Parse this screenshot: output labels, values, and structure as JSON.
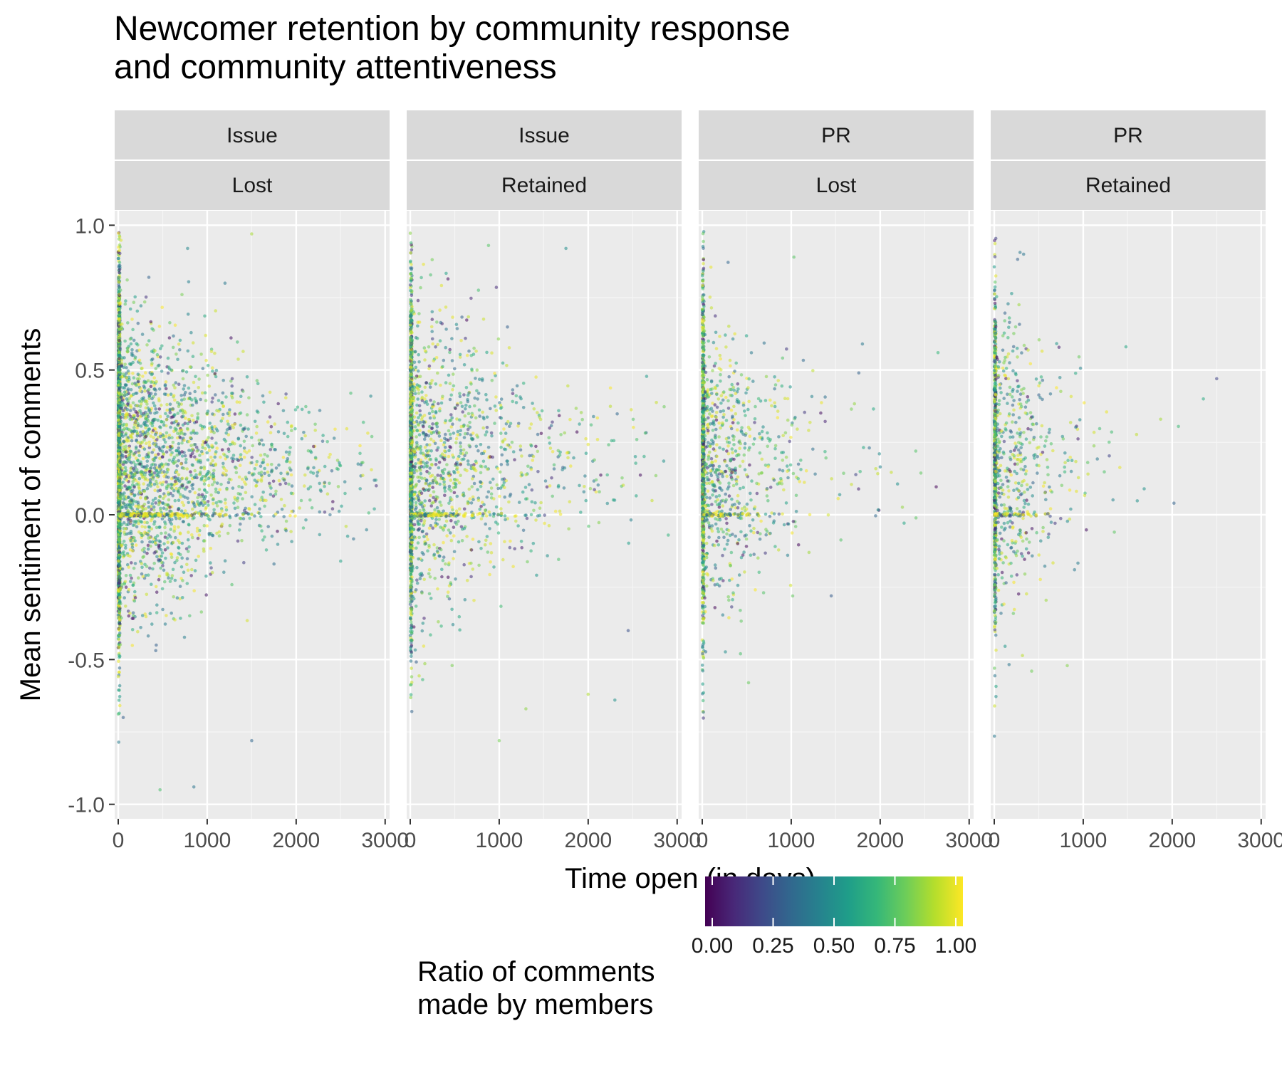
{
  "chart_data": {
    "type": "scatter",
    "title_lines": [
      "Newcomer retention by community response",
      "and community attentiveness"
    ],
    "xlabel": "Time open (in days)",
    "ylabel": "Mean sentiment of comments",
    "xlim": [
      -40,
      3050
    ],
    "ylim": [
      -1.05,
      1.05
    ],
    "x_ticks": [
      0,
      1000,
      2000,
      3000
    ],
    "x_tick_labels": [
      "0",
      "1000",
      "2000",
      "3000"
    ],
    "y_ticks": [
      -1.0,
      -0.5,
      0.0,
      0.5,
      1.0
    ],
    "y_tick_labels": [
      "-1.0",
      "-0.5",
      "0.0",
      "0.5",
      "1.0"
    ],
    "grid": true,
    "facets": [
      {
        "row1": "Issue",
        "row2": "Lost",
        "density": 3.0,
        "spread_days": 750,
        "max_days": 2900,
        "highlights": [
          [
            1500,
            0.97
          ],
          [
            780,
            0.92
          ],
          [
            1200,
            0.8
          ],
          [
            2500,
            -0.16
          ],
          [
            2900,
            0.1
          ],
          [
            850,
            -0.94
          ],
          [
            470,
            -0.95
          ],
          [
            1500,
            -0.78
          ]
        ]
      },
      {
        "row1": "Issue",
        "row2": "Retained",
        "density": 1.6,
        "spread_days": 650,
        "max_days": 2900,
        "highlights": [
          [
            1750,
            0.92
          ],
          [
            2900,
            -0.07
          ],
          [
            2450,
            -0.4
          ],
          [
            1300,
            -0.67
          ],
          [
            2300,
            -0.64
          ],
          [
            2000,
            -0.62
          ],
          [
            1000,
            -0.78
          ],
          [
            880,
            0.93
          ]
        ]
      },
      {
        "row1": "PR",
        "row2": "Lost",
        "density": 1.0,
        "spread_days": 450,
        "max_days": 2700,
        "highlights": [
          [
            2650,
            0.56
          ],
          [
            1800,
            0.59
          ],
          [
            2400,
            0.22
          ],
          [
            1450,
            -0.28
          ],
          [
            1200,
            -0.13
          ],
          [
            520,
            -0.58
          ],
          [
            430,
            -0.48
          ],
          [
            1030,
            0.89
          ]
        ]
      },
      {
        "row1": "PR",
        "row2": "Retained",
        "density": 0.7,
        "spread_days": 320,
        "max_days": 2500,
        "highlights": [
          [
            2500,
            0.47
          ],
          [
            2350,
            0.4
          ],
          [
            2020,
            0.04
          ],
          [
            1870,
            0.33
          ],
          [
            1350,
            -0.06
          ],
          [
            420,
            -0.54
          ],
          [
            1480,
            0.58
          ],
          [
            330,
            0.9
          ]
        ]
      }
    ],
    "color_scale": {
      "name": "Ratio of comments made by members",
      "title_lines": [
        "Ratio of comments",
        "made by members"
      ],
      "min": 0.0,
      "max": 1.0,
      "ticks": [
        0.0,
        0.25,
        0.5,
        0.75,
        1.0
      ],
      "tick_labels": [
        "0.00",
        "0.25",
        "0.50",
        "0.75",
        "1.00"
      ],
      "colors": [
        "#440154",
        "#482878",
        "#3e4a89",
        "#31688e",
        "#26828e",
        "#1f9e89",
        "#35b779",
        "#6dcd59",
        "#b4de2c",
        "#fde725"
      ]
    }
  }
}
